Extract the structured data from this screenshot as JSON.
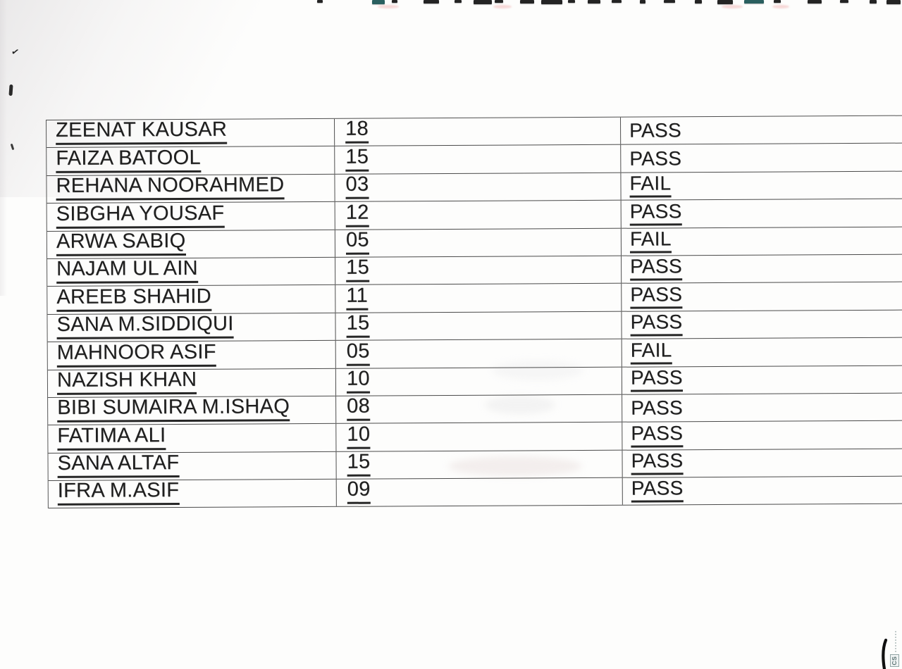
{
  "table": {
    "rows": [
      {
        "name": "ZEENAT KAUSAR",
        "marks": "18",
        "status": "PASS",
        "status_underlined": false
      },
      {
        "name": "FAIZA BATOOL",
        "marks": "15",
        "status": "PASS",
        "status_underlined": false
      },
      {
        "name": "REHANA NOORAHMED",
        "marks": "03",
        "status": "FAIL",
        "status_underlined": true
      },
      {
        "name": "SIBGHA YOUSAF",
        "marks": "12",
        "status": "PASS",
        "status_underlined": true
      },
      {
        "name": "ARWA SABIQ",
        "marks": "05",
        "status": "FAIL",
        "status_underlined": true
      },
      {
        "name": "NAJAM UL AIN",
        "marks": "15",
        "status": "PASS",
        "status_underlined": true
      },
      {
        "name": "AREEB SHAHID",
        "marks": "11",
        "status": "PASS",
        "status_underlined": true
      },
      {
        "name": "SANA M.SIDDIQUI",
        "marks": "15",
        "status": "PASS",
        "status_underlined": true
      },
      {
        "name": "MAHNOOR ASIF",
        "marks": "05",
        "status": "FAIL",
        "status_underlined": true
      },
      {
        "name": "NAZISH KHAN",
        "marks": "10",
        "status": "PASS",
        "status_underlined": true
      },
      {
        "name": "BIBI SUMAIRA M.ISHAQ",
        "marks": "08",
        "status": "PASS",
        "status_underlined": false
      },
      {
        "name": "FATIMA ALI",
        "marks": "10",
        "status": "PASS",
        "status_underlined": true
      },
      {
        "name": "SANA ALTAF",
        "marks": "15",
        "status": "PASS",
        "status_underlined": true
      },
      {
        "name": "IFRA M.ASIF",
        "marks": "09",
        "status": "PASS",
        "status_underlined": true
      }
    ]
  },
  "watermark": {
    "stamp_label": "CS"
  },
  "colors": {
    "ink": "#1f1f1f",
    "table_line": "#4a4a4a",
    "paper": "#fdfdfc"
  }
}
